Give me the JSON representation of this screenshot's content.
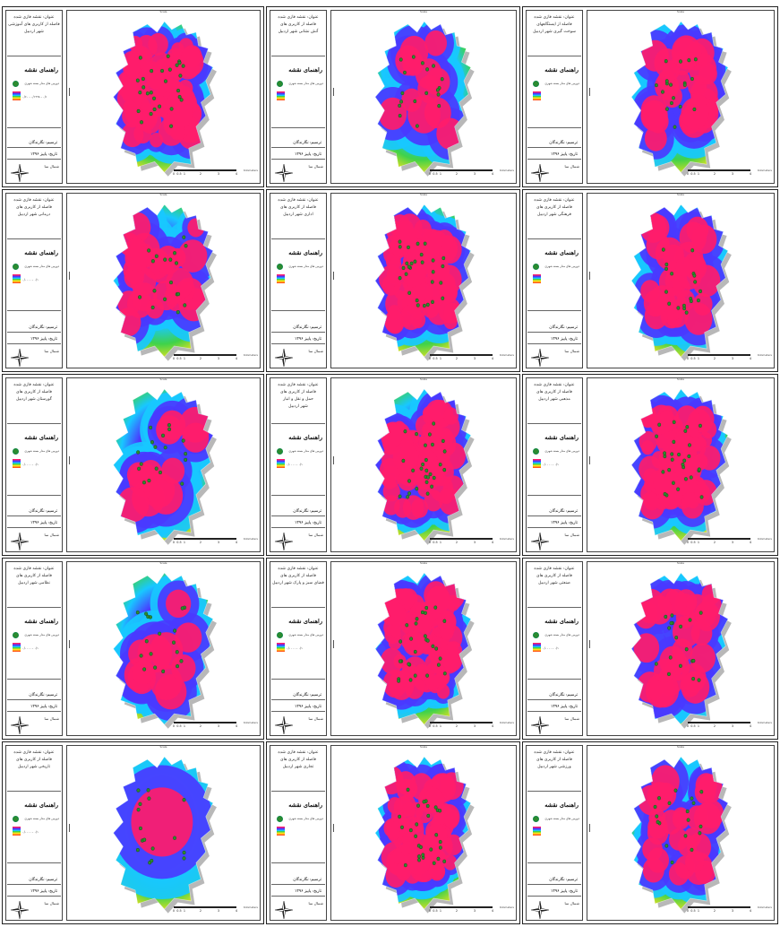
{
  "page": {
    "colors": {
      "near": "#ff1c6b",
      "mid": "#4a39ff",
      "cyan": "#18c8ff",
      "green": "#3fd24a",
      "yellow": "#ffe21a",
      "far": "#ff5a1f",
      "station": "#2e8b2e",
      "shadow": "#9a9a9a"
    },
    "common": {
      "legend_title": "راهنمای نقشه",
      "station_label": "دوربین های مدار بسته شهری",
      "author": "ترسیم: نگارندگان",
      "date": "تاریخ: پاییز ۱۳۹۶",
      "north_label": "شمال نما",
      "north_icon": "compass-rose-icon",
      "scale_label": "Scale",
      "scale_unit": "Kilometers",
      "scale_numbers": [
        "0",
        "0.5",
        "1",
        "2",
        "3",
        "4"
      ]
    },
    "maps": [
      {
        "title": [
          "عنوان: نقشه فازی شده",
          "فاصله از کاربری های آموزشی",
          "شهر اردبیل"
        ],
        "range": "۰/۶۰ - ۰/۱۹۹۸ - ۰/۱",
        "pattern": "dense"
      },
      {
        "title": [
          "عنوان: نقشه فازی شده",
          "فاصله از کاربری های",
          "آتش نشانی شهر اردبیل"
        ],
        "range": "",
        "pattern": "sparse"
      },
      {
        "title": [
          "عنوان: نقشه فازی شده",
          "فاصله از ایستگاههای",
          "سوخت گیری شهر اردبیل"
        ],
        "range": "",
        "pattern": "medium"
      },
      {
        "title": [
          "عنوان: نقشه فازی شده",
          "فاصله از کاربری های",
          "درمانی شهر اردبیل"
        ],
        "range": "۰/۰۰۰۰ - ۰/۱",
        "pattern": "medium"
      },
      {
        "title": [
          "عنوان: نقشه فازی شده",
          "فاصله از کاربری های",
          "اداری شهر اردبیل"
        ],
        "range": "",
        "pattern": "dense"
      },
      {
        "title": [
          "عنوان: نقشه فازی شده",
          "فاصله از کاربری های",
          "فرهنگی شهر اردبیل"
        ],
        "range": "",
        "pattern": "medium"
      },
      {
        "title": [
          "عنوان: نقشه فازی شده",
          "فاصله از کاربری های",
          "گورستان شهر اردبیل"
        ],
        "range": "۰/۰۰۰۰ - ۰/۱",
        "pattern": "sparse"
      },
      {
        "title": [
          "عنوان: نقشه فازی شده",
          "فاصله از کاربری های",
          "حمل و نقل و انبار",
          "شهر اردبیل"
        ],
        "range": "۰/۰۰۰۰ - ۰/۱",
        "pattern": "dense"
      },
      {
        "title": [
          "عنوان: نقشه فازی شده",
          "فاصله از کاربری های",
          "مذهبی شهر اردبیل"
        ],
        "range": "۰/۰۰۰۰ - ۰/۱",
        "pattern": "dense"
      },
      {
        "title": [
          "عنوان: نقشه فازی شده",
          "فاصله از کاربری های",
          "نظامی شهر اردبیل"
        ],
        "range": "۰/۰۰۰۰ - ۰/۱",
        "pattern": "sparse"
      },
      {
        "title": [
          "عنوان: نقشه فازی شده",
          "فاصله از کاربری های",
          "فضای سبز و پارک شهر اردبیل"
        ],
        "range": "۰/۰۰۰۰ - ۰/۱",
        "pattern": "dense"
      },
      {
        "title": [
          "عنوان: نقشه فازی شده",
          "فاصله از کاربری های",
          "صنعتی شهر اردبیل"
        ],
        "range": "۰/۰۰۰۰ - ۰/۱",
        "pattern": "medium"
      },
      {
        "title": [
          "عنوان: نقشه فازی شده",
          "فاصله از کاربری های",
          "تاریخی شهر اردبیل"
        ],
        "range": "۰/۰۰۰۰ - ۰/۱",
        "pattern": "single"
      },
      {
        "title": [
          "عنوان: نقشه فازی شده",
          "فاصله از کاربری های",
          "تجاری شهر اردبیل"
        ],
        "range": "",
        "pattern": "dense"
      },
      {
        "title": [
          "عنوان: نقشه فازی شده",
          "فاصله از کاربری های",
          "ورزشی شهر اردبیل"
        ],
        "range": "",
        "pattern": "medium"
      }
    ]
  }
}
